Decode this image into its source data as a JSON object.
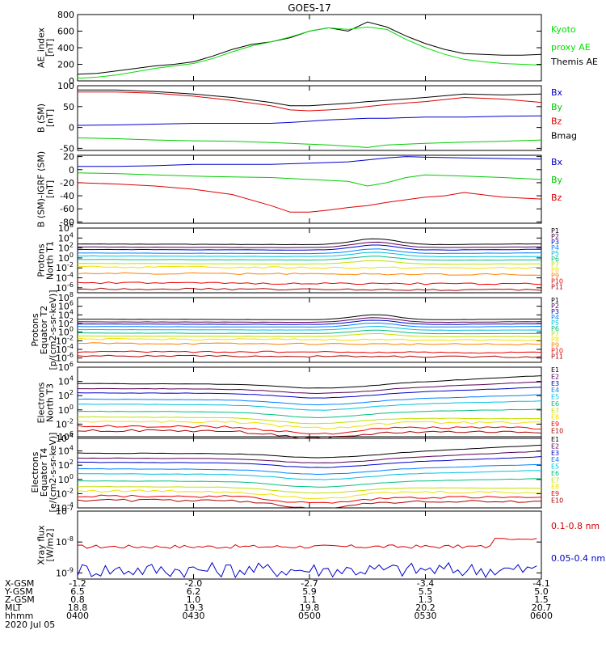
{
  "chart_data": {
    "title": "GOES-17",
    "date": "2020 Jul 05",
    "x_axis": {
      "rows": [
        {
          "label": "X-GSM",
          "values": [
            "-1.2",
            "-2.0",
            "-2.7",
            "-3.4",
            "-4.1"
          ]
        },
        {
          "label": "Y-GSM",
          "values": [
            "6.5",
            "6.2",
            "5.9",
            "5.5",
            "5.0"
          ]
        },
        {
          "label": "Z-GSM",
          "values": [
            "0.8",
            "1.0",
            "1.1",
            "1.3",
            "1.5"
          ]
        },
        {
          "label": "MLT",
          "values": [
            "18.8",
            "19.3",
            "19.8",
            "20.2",
            "20.7"
          ]
        },
        {
          "label": "hhmm",
          "values": [
            "0400",
            "0430",
            "0500",
            "0530",
            "0600"
          ]
        }
      ],
      "time_range_min": [
        0,
        120
      ],
      "tick_times_min": [
        0,
        30,
        60,
        90,
        120
      ]
    },
    "panels": [
      {
        "id": "ae",
        "type": "line",
        "ylabel": [
          "AE_index",
          "[nT]"
        ],
        "scale": "linear",
        "ylim": [
          0,
          800
        ],
        "yticks": [
          0,
          200,
          400,
          600,
          800
        ],
        "ytick_labels": [
          "0",
          "200",
          "400",
          "600",
          "800"
        ],
        "legend": [
          {
            "text": "Kyoto",
            "color": "#00e000"
          },
          {
            "text": "proxy AE",
            "color": "#00e000"
          },
          {
            "text": "Themis AE",
            "color": "#000000"
          }
        ],
        "series": [
          {
            "name": "Themis AE",
            "color": "#000000",
            "t": [
              0,
              5,
              10,
              15,
              20,
              25,
              30,
              35,
              40,
              45,
              50,
              55,
              60,
              65,
              70,
              75,
              80,
              85,
              90,
              95,
              100,
              105,
              110,
              115,
              120
            ],
            "y": [
              80,
              90,
              120,
              150,
              180,
              200,
              230,
              300,
              380,
              440,
              470,
              520,
              600,
              640,
              600,
              710,
              650,
              540,
              450,
              380,
              330,
              320,
              310,
              310,
              320
            ]
          },
          {
            "name": "Kyoto proxy AE",
            "color": "#00e000",
            "t": [
              0,
              5,
              10,
              15,
              20,
              25,
              30,
              35,
              40,
              45,
              50,
              55,
              60,
              65,
              70,
              75,
              80,
              85,
              90,
              95,
              100,
              105,
              110,
              115,
              120
            ],
            "y": [
              30,
              45,
              70,
              110,
              150,
              180,
              210,
              270,
              350,
              420,
              470,
              530,
              600,
              640,
              620,
              650,
              620,
              500,
              400,
              320,
              260,
              230,
              210,
              200,
              190
            ]
          }
        ]
      },
      {
        "id": "b_sm",
        "type": "line",
        "ylabel": [
          "B (SM)",
          "[nT]"
        ],
        "scale": "linear",
        "ylim": [
          -55,
          100
        ],
        "yticks": [
          -50,
          0,
          50,
          100
        ],
        "ytick_labels": [
          "-50",
          "0",
          "50",
          "100"
        ],
        "legend": [
          {
            "text": "Bx",
            "color": "#0000cc"
          },
          {
            "text": "By",
            "color": "#00cc00"
          },
          {
            "text": "Bz",
            "color": "#dd0000"
          },
          {
            "text": "Bmag",
            "color": "#000000"
          }
        ],
        "series": [
          {
            "name": "Bmag",
            "color": "#000000",
            "t": [
              0,
              10,
              20,
              30,
              40,
              50,
              55,
              60,
              65,
              70,
              75,
              80,
              90,
              100,
              110,
              120
            ],
            "y": [
              90,
              90,
              86,
              80,
              72,
              60,
              52,
              52,
              55,
              58,
              62,
              65,
              72,
              80,
              78,
              80
            ]
          },
          {
            "name": "Bz",
            "color": "#dd0000",
            "t": [
              0,
              10,
              20,
              30,
              40,
              50,
              55,
              60,
              65,
              70,
              75,
              80,
              90,
              100,
              110,
              120
            ],
            "y": [
              85,
              85,
              82,
              75,
              65,
              52,
              42,
              40,
              42,
              45,
              50,
              55,
              62,
              72,
              68,
              60
            ]
          },
          {
            "name": "Bx",
            "color": "#0000cc",
            "t": [
              0,
              10,
              20,
              30,
              40,
              50,
              55,
              60,
              65,
              70,
              75,
              80,
              90,
              100,
              110,
              120
            ],
            "y": [
              5,
              6,
              8,
              10,
              10,
              10,
              12,
              15,
              18,
              20,
              22,
              22,
              25,
              25,
              27,
              28
            ]
          },
          {
            "name": "By",
            "color": "#00cc00",
            "t": [
              0,
              10,
              20,
              30,
              40,
              50,
              55,
              60,
              65,
              70,
              75,
              80,
              90,
              100,
              110,
              120
            ],
            "y": [
              -25,
              -27,
              -30,
              -32,
              -33,
              -36,
              -38,
              -40,
              -42,
              -45,
              -48,
              -42,
              -38,
              -35,
              -33,
              -30
            ]
          }
        ]
      },
      {
        "id": "b_igrf",
        "type": "line",
        "ylabel": [
          "B (SM)-IGRF (SM)",
          "[nT]"
        ],
        "scale": "linear",
        "ylim": [
          -82,
          22
        ],
        "yticks": [
          -80,
          -60,
          -40,
          -20,
          0,
          20
        ],
        "ytick_labels": [
          "-80",
          "-60",
          "-40",
          "-20",
          "0",
          "20"
        ],
        "legend": [
          {
            "text": "Bx",
            "color": "#0000cc"
          },
          {
            "text": "By",
            "color": "#00cc00"
          },
          {
            "text": "Bz",
            "color": "#dd0000"
          }
        ],
        "series": [
          {
            "name": "Bx",
            "color": "#0000cc",
            "t": [
              0,
              10,
              20,
              30,
              40,
              50,
              60,
              70,
              75,
              80,
              85,
              90,
              100,
              110,
              120
            ],
            "y": [
              5,
              5,
              6,
              8,
              8,
              8,
              10,
              12,
              15,
              18,
              20,
              19,
              18,
              17,
              16
            ]
          },
          {
            "name": "By",
            "color": "#00cc00",
            "t": [
              0,
              10,
              20,
              30,
              40,
              50,
              60,
              70,
              75,
              80,
              85,
              90,
              100,
              110,
              120
            ],
            "y": [
              -5,
              -6,
              -8,
              -10,
              -11,
              -12,
              -15,
              -18,
              -25,
              -20,
              -12,
              -8,
              -10,
              -12,
              -15
            ]
          },
          {
            "name": "Bz",
            "color": "#dd0000",
            "t": [
              0,
              10,
              20,
              30,
              40,
              50,
              55,
              60,
              65,
              70,
              75,
              80,
              90,
              95,
              100,
              110,
              120
            ],
            "y": [
              -20,
              -22,
              -25,
              -30,
              -38,
              -55,
              -65,
              -65,
              -62,
              -58,
              -55,
              -50,
              -42,
              -40,
              -35,
              -42,
              -45
            ]
          }
        ]
      },
      {
        "id": "protons_t1",
        "type": "line",
        "ylabel": [
          "Protons",
          "North T1"
        ],
        "scale": "log",
        "ylim_exp": [
          -7,
          6
        ],
        "ytick_exps": [
          -6,
          -4,
          -2,
          0,
          2,
          4,
          6
        ],
        "ytick_labels": [
          "10-6",
          "10-4",
          "10-2",
          "100",
          "102",
          "104",
          "106"
        ],
        "legend": [
          {
            "text": "P1",
            "color": "#000000"
          },
          {
            "text": "P2",
            "color": "#550055"
          },
          {
            "text": "P3",
            "color": "#0000cc"
          },
          {
            "text": "P4",
            "color": "#0080ff"
          },
          {
            "text": "P5",
            "color": "#00c0e0"
          },
          {
            "text": "P6",
            "color": "#00c080"
          },
          {
            "text": "P7",
            "color": "#c0e000"
          },
          {
            "text": "P8",
            "color": "#f0e000"
          },
          {
            "text": "P9",
            "color": "#ff8000"
          },
          {
            "text": "P10",
            "color": "#ee0000"
          },
          {
            "text": "P11",
            "color": "#aa0000"
          }
        ]
      },
      {
        "id": "protons_t2",
        "type": "line",
        "ylabel": [
          "Protons",
          "Equator T2",
          "[p/(cm2-s-sr-keV)]"
        ],
        "scale": "log",
        "ylim_exp": [
          -7,
          8
        ],
        "ytick_exps": [
          -6,
          -4,
          -2,
          0,
          2,
          4,
          6,
          8
        ],
        "ytick_labels": [
          "10-6",
          "10-4",
          "10-2",
          "100",
          "102",
          "104",
          "106",
          "108"
        ],
        "legend": [
          {
            "text": "P1",
            "color": "#000000"
          },
          {
            "text": "P2",
            "color": "#550055"
          },
          {
            "text": "P3",
            "color": "#0000cc"
          },
          {
            "text": "P4",
            "color": "#0080ff"
          },
          {
            "text": "P5",
            "color": "#00c0e0"
          },
          {
            "text": "P6",
            "color": "#00c080"
          },
          {
            "text": "P7",
            "color": "#c0e000"
          },
          {
            "text": "P8",
            "color": "#f0e000"
          },
          {
            "text": "P9",
            "color": "#ff8000"
          },
          {
            "text": "P10",
            "color": "#ee0000"
          },
          {
            "text": "P11",
            "color": "#aa0000"
          }
        ]
      },
      {
        "id": "electrons_t3",
        "type": "line",
        "ylabel": [
          "Electrons",
          "North T3"
        ],
        "scale": "log",
        "ylim_exp": [
          -4,
          6
        ],
        "ytick_exps": [
          -4,
          -2,
          0,
          2,
          4,
          6
        ],
        "ytick_labels": [
          "10-4",
          "10-2",
          "100",
          "102",
          "104",
          "106"
        ],
        "legend": [
          {
            "text": "E1",
            "color": "#000000"
          },
          {
            "text": "E2",
            "color": "#550055"
          },
          {
            "text": "E3",
            "color": "#0000cc"
          },
          {
            "text": "E4",
            "color": "#0080ff"
          },
          {
            "text": "E5",
            "color": "#00c0e0"
          },
          {
            "text": "E6",
            "color": "#00c080"
          },
          {
            "text": "E7",
            "color": "#c0e000"
          },
          {
            "text": "E8",
            "color": "#f0e000"
          },
          {
            "text": "E9",
            "color": "#ee0000"
          },
          {
            "text": "E10",
            "color": "#aa0000"
          }
        ]
      },
      {
        "id": "electrons_t4",
        "type": "line",
        "ylabel": [
          "Electrons",
          "Equator T4",
          "[e/(cm2-s-sr-keV)]"
        ],
        "scale": "log",
        "ylim_exp": [
          -4,
          6
        ],
        "ytick_exps": [
          -4,
          -2,
          0,
          2,
          4,
          6
        ],
        "ytick_labels": [
          "10-4",
          "10-2",
          "100",
          "102",
          "104",
          "106"
        ],
        "legend": [
          {
            "text": "E1",
            "color": "#000000"
          },
          {
            "text": "E2",
            "color": "#550055"
          },
          {
            "text": "E3",
            "color": "#0000cc"
          },
          {
            "text": "E4",
            "color": "#0080ff"
          },
          {
            "text": "E5",
            "color": "#00c0e0"
          },
          {
            "text": "E6",
            "color": "#00c080"
          },
          {
            "text": "E7",
            "color": "#c0e000"
          },
          {
            "text": "E8",
            "color": "#f0e000"
          },
          {
            "text": "E9",
            "color": "#ee0000"
          },
          {
            "text": "E10",
            "color": "#aa0000"
          }
        ]
      },
      {
        "id": "xray",
        "type": "line",
        "ylabel": [
          "Xray flux",
          "[W/m2]"
        ],
        "scale": "log",
        "ylim_exp": [
          -9.2,
          -7
        ],
        "ytick_exps": [
          -9,
          -8,
          -7
        ],
        "ytick_labels": [
          "10-9",
          "10-8",
          "10-7"
        ],
        "legend": [
          {
            "text": "0.1-0.8 nm",
            "color": "#dd0000"
          },
          {
            "text": "0.05-0.4 nm",
            "color": "#0000cc"
          }
        ],
        "series": [
          {
            "name": "0.1-0.8 nm",
            "color": "#dd0000",
            "base_exp": -8.15,
            "jitter": 0.06,
            "rise_to_exp": -7.9,
            "rise_from_min": 108
          },
          {
            "name": "0.05-0.4 nm",
            "color": "#0000cc",
            "base_exp": -8.9,
            "jitter": 0.25
          }
        ]
      }
    ]
  }
}
